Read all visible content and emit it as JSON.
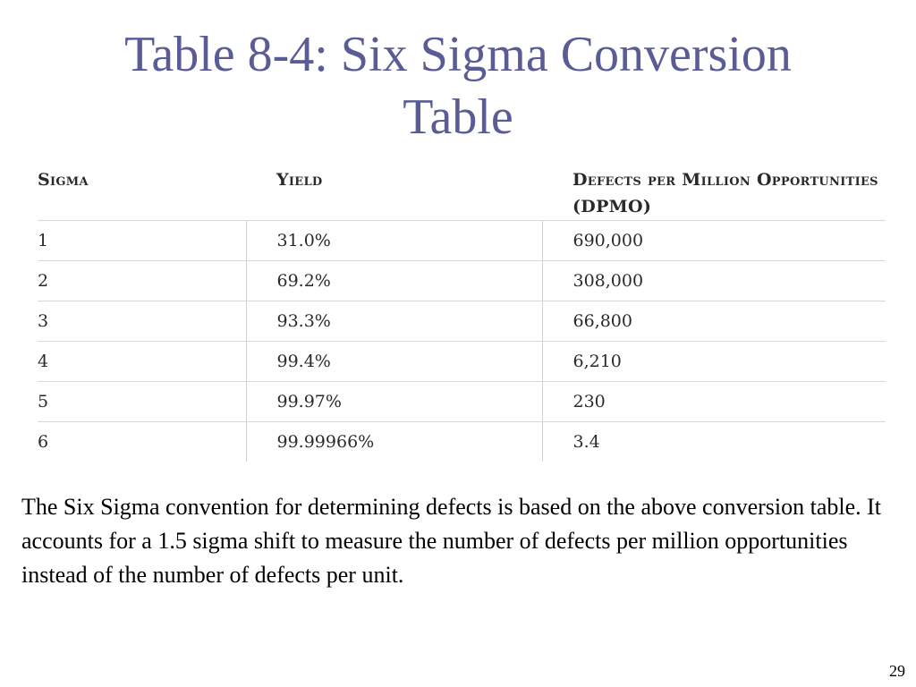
{
  "slide": {
    "title_line1": "Table 8-4: Six Sigma Conversion",
    "title_line2": "Table",
    "table": {
      "headers": [
        "Sigma",
        "Yield",
        "Defects per Million Opportunities (DPMO)"
      ],
      "rows": [
        [
          "1",
          "31.0%",
          "690,000"
        ],
        [
          "2",
          "69.2%",
          "308,000"
        ],
        [
          "3",
          "93.3%",
          "66,800"
        ],
        [
          "4",
          "99.4%",
          "6,210"
        ],
        [
          "5",
          "99.97%",
          "230"
        ],
        [
          "6",
          "99.99966%",
          "3.4"
        ]
      ]
    },
    "paragraph": "The Six Sigma convention for determining defects is based on the above conversion table. It accounts for a 1.5 sigma shift to measure the number of defects per million opportunities instead of the number of defects per unit.",
    "page_number": "29",
    "colors": {
      "title": "#5a5c95",
      "table_text": "#2a2a2a",
      "rule": "#d8d8d8"
    }
  }
}
